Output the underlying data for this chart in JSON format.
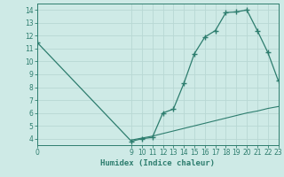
{
  "main_x": [
    0,
    9,
    10,
    11,
    12,
    13,
    14,
    15,
    16,
    17,
    18,
    19,
    20,
    21,
    22,
    23
  ],
  "main_y": [
    11.5,
    3.8,
    4.0,
    4.1,
    6.0,
    6.3,
    8.3,
    10.6,
    11.9,
    12.4,
    13.8,
    13.85,
    14.0,
    12.4,
    10.7,
    8.5
  ],
  "secondary_x": [
    9,
    10,
    11,
    12,
    13,
    14,
    15,
    16,
    17,
    18,
    19,
    20,
    21,
    22,
    23
  ],
  "secondary_y": [
    3.9,
    4.05,
    4.2,
    4.4,
    4.6,
    4.8,
    5.0,
    5.2,
    5.4,
    5.6,
    5.8,
    6.0,
    6.15,
    6.35,
    6.5
  ],
  "line_color": "#2d7d6e",
  "bg_color": "#ceeae6",
  "grid_color": "#b8d8d4",
  "xlabel": "Humidex (Indice chaleur)",
  "xlim": [
    0,
    23
  ],
  "ylim": [
    3.5,
    14.5
  ],
  "yticks": [
    4,
    5,
    6,
    7,
    8,
    9,
    10,
    11,
    12,
    13,
    14
  ],
  "xticks": [
    0,
    9,
    10,
    11,
    12,
    13,
    14,
    15,
    16,
    17,
    18,
    19,
    20,
    21,
    22,
    23
  ]
}
